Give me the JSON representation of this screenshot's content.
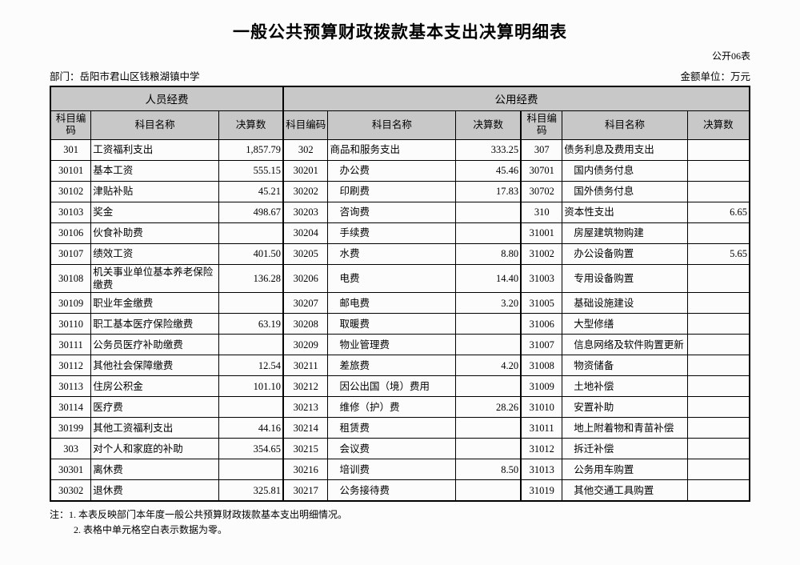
{
  "page": {
    "title": "一般公共预算财政拨款基本支出决算明细表",
    "form_code": "公开06表",
    "department_label": "部门：岳阳市君山区钱粮湖镇中学",
    "unit_label": "金额单位：万元",
    "notes": [
      "注：1. 本表反映部门本年度一般公共预算财政拨款基本支出明细情况。",
      "2. 表格中单元格空白表示数据为零。"
    ]
  },
  "table": {
    "header_bg": "#c8c8c8",
    "border_color": "#000000",
    "group_headers": [
      "人员经费",
      "公用经费"
    ],
    "col_headers": [
      "科目编码",
      "科目名称",
      "决算数"
    ],
    "rows": [
      [
        {
          "code": "301",
          "name": "工资福利支出",
          "value": "1,857.79",
          "indent": false
        },
        {
          "code": "302",
          "name": "商品和服务支出",
          "value": "333.25",
          "indent": false
        },
        {
          "code": "307",
          "name": "债务利息及费用支出",
          "value": "",
          "indent": false
        }
      ],
      [
        {
          "code": "30101",
          "name": "基本工资",
          "value": "555.15",
          "indent": false
        },
        {
          "code": "30201",
          "name": "办公费",
          "value": "45.46",
          "indent": true
        },
        {
          "code": "30701",
          "name": "国内债务付息",
          "value": "",
          "indent": true
        }
      ],
      [
        {
          "code": "30102",
          "name": "津贴补贴",
          "value": "45.21",
          "indent": false
        },
        {
          "code": "30202",
          "name": "印刷费",
          "value": "17.83",
          "indent": true
        },
        {
          "code": "30702",
          "name": "国外债务付息",
          "value": "",
          "indent": true
        }
      ],
      [
        {
          "code": "30103",
          "name": "奖金",
          "value": "498.67",
          "indent": false
        },
        {
          "code": "30203",
          "name": "咨询费",
          "value": "",
          "indent": true
        },
        {
          "code": "310",
          "name": "资本性支出",
          "value": "6.65",
          "indent": false
        }
      ],
      [
        {
          "code": "30106",
          "name": "伙食补助费",
          "value": "",
          "indent": false
        },
        {
          "code": "30204",
          "name": "手续费",
          "value": "",
          "indent": true
        },
        {
          "code": "31001",
          "name": "房屋建筑物购建",
          "value": "",
          "indent": true
        }
      ],
      [
        {
          "code": "30107",
          "name": "绩效工资",
          "value": "401.50",
          "indent": false
        },
        {
          "code": "30205",
          "name": "水费",
          "value": "8.80",
          "indent": true
        },
        {
          "code": "31002",
          "name": "办公设备购置",
          "value": "5.65",
          "indent": true
        }
      ],
      [
        {
          "code": "30108",
          "name": "机关事业单位基本养老保险缴费",
          "value": "136.28",
          "indent": false
        },
        {
          "code": "30206",
          "name": "电费",
          "value": "14.40",
          "indent": true
        },
        {
          "code": "31003",
          "name": "专用设备购置",
          "value": "",
          "indent": true
        }
      ],
      [
        {
          "code": "30109",
          "name": "职业年金缴费",
          "value": "",
          "indent": false
        },
        {
          "code": "30207",
          "name": "邮电费",
          "value": "3.20",
          "indent": true
        },
        {
          "code": "31005",
          "name": "基础设施建设",
          "value": "",
          "indent": true
        }
      ],
      [
        {
          "code": "30110",
          "name": "职工基本医疗保险缴费",
          "value": "63.19",
          "indent": false
        },
        {
          "code": "30208",
          "name": "取暖费",
          "value": "",
          "indent": true
        },
        {
          "code": "31006",
          "name": "大型修缮",
          "value": "",
          "indent": true
        }
      ],
      [
        {
          "code": "30111",
          "name": "公务员医疗补助缴费",
          "value": "",
          "indent": false
        },
        {
          "code": "30209",
          "name": "物业管理费",
          "value": "",
          "indent": true
        },
        {
          "code": "31007",
          "name": "信息网络及软件购置更新",
          "value": "",
          "indent": true
        }
      ],
      [
        {
          "code": "30112",
          "name": "其他社会保障缴费",
          "value": "12.54",
          "indent": false
        },
        {
          "code": "30211",
          "name": "差旅费",
          "value": "4.20",
          "indent": true
        },
        {
          "code": "31008",
          "name": "物资储备",
          "value": "",
          "indent": true
        }
      ],
      [
        {
          "code": "30113",
          "name": "住房公积金",
          "value": "101.10",
          "indent": false
        },
        {
          "code": "30212",
          "name": "因公出国（境）费用",
          "value": "",
          "indent": true
        },
        {
          "code": "31009",
          "name": "土地补偿",
          "value": "",
          "indent": true
        }
      ],
      [
        {
          "code": "30114",
          "name": "医疗费",
          "value": "",
          "indent": false
        },
        {
          "code": "30213",
          "name": "维修（护）费",
          "value": "28.26",
          "indent": true
        },
        {
          "code": "31010",
          "name": "安置补助",
          "value": "",
          "indent": true
        }
      ],
      [
        {
          "code": "30199",
          "name": "其他工资福利支出",
          "value": "44.16",
          "indent": false
        },
        {
          "code": "30214",
          "name": "租赁费",
          "value": "",
          "indent": true
        },
        {
          "code": "31011",
          "name": "地上附着物和青苗补偿",
          "value": "",
          "indent": true
        }
      ],
      [
        {
          "code": "303",
          "name": "对个人和家庭的补助",
          "value": "354.65",
          "indent": false
        },
        {
          "code": "30215",
          "name": "会议费",
          "value": "",
          "indent": true
        },
        {
          "code": "31012",
          "name": "拆迁补偿",
          "value": "",
          "indent": true
        }
      ],
      [
        {
          "code": "30301",
          "name": "离休费",
          "value": "",
          "indent": false
        },
        {
          "code": "30216",
          "name": "培训费",
          "value": "8.50",
          "indent": true
        },
        {
          "code": "31013",
          "name": "公务用车购置",
          "value": "",
          "indent": true
        }
      ],
      [
        {
          "code": "30302",
          "name": "退休费",
          "value": "325.81",
          "indent": false
        },
        {
          "code": "30217",
          "name": "公务接待费",
          "value": "",
          "indent": true
        },
        {
          "code": "31019",
          "name": "其他交通工具购置",
          "value": "",
          "indent": true
        }
      ]
    ]
  }
}
